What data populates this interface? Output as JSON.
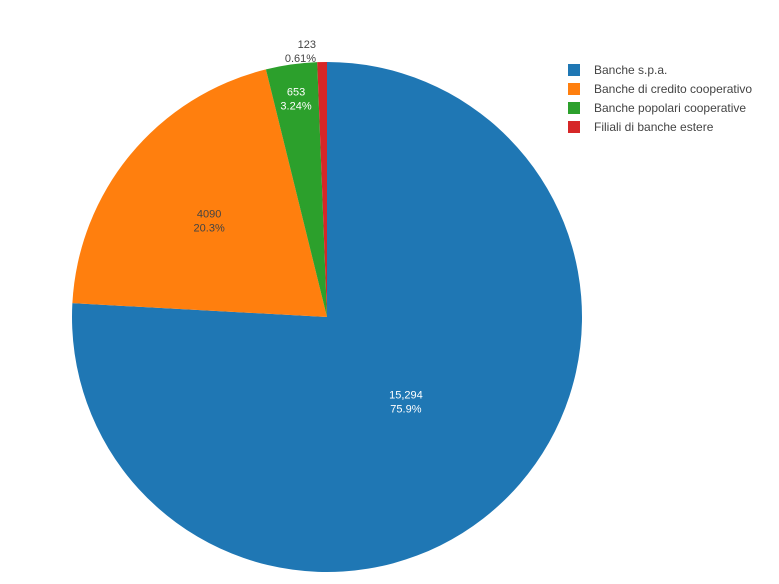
{
  "chart_data": {
    "type": "pie",
    "title": "",
    "labels": [
      "Banche s.p.a.",
      "Banche di credito cooperativo",
      "Banche popolari cooperative",
      "Filiali di banche estere"
    ],
    "values": [
      15294,
      4090,
      653,
      123
    ],
    "value_labels": [
      "15,294",
      "4090",
      "653",
      "123"
    ],
    "percent_labels": [
      "75.9%",
      "20.3%",
      "3.24%",
      "0.61%"
    ],
    "colors": [
      "#1f77b4",
      "#ff7f0e",
      "#2ca02c",
      "#d62728"
    ],
    "legend_position": "top-right",
    "direction": "clockwise",
    "start": "top"
  }
}
